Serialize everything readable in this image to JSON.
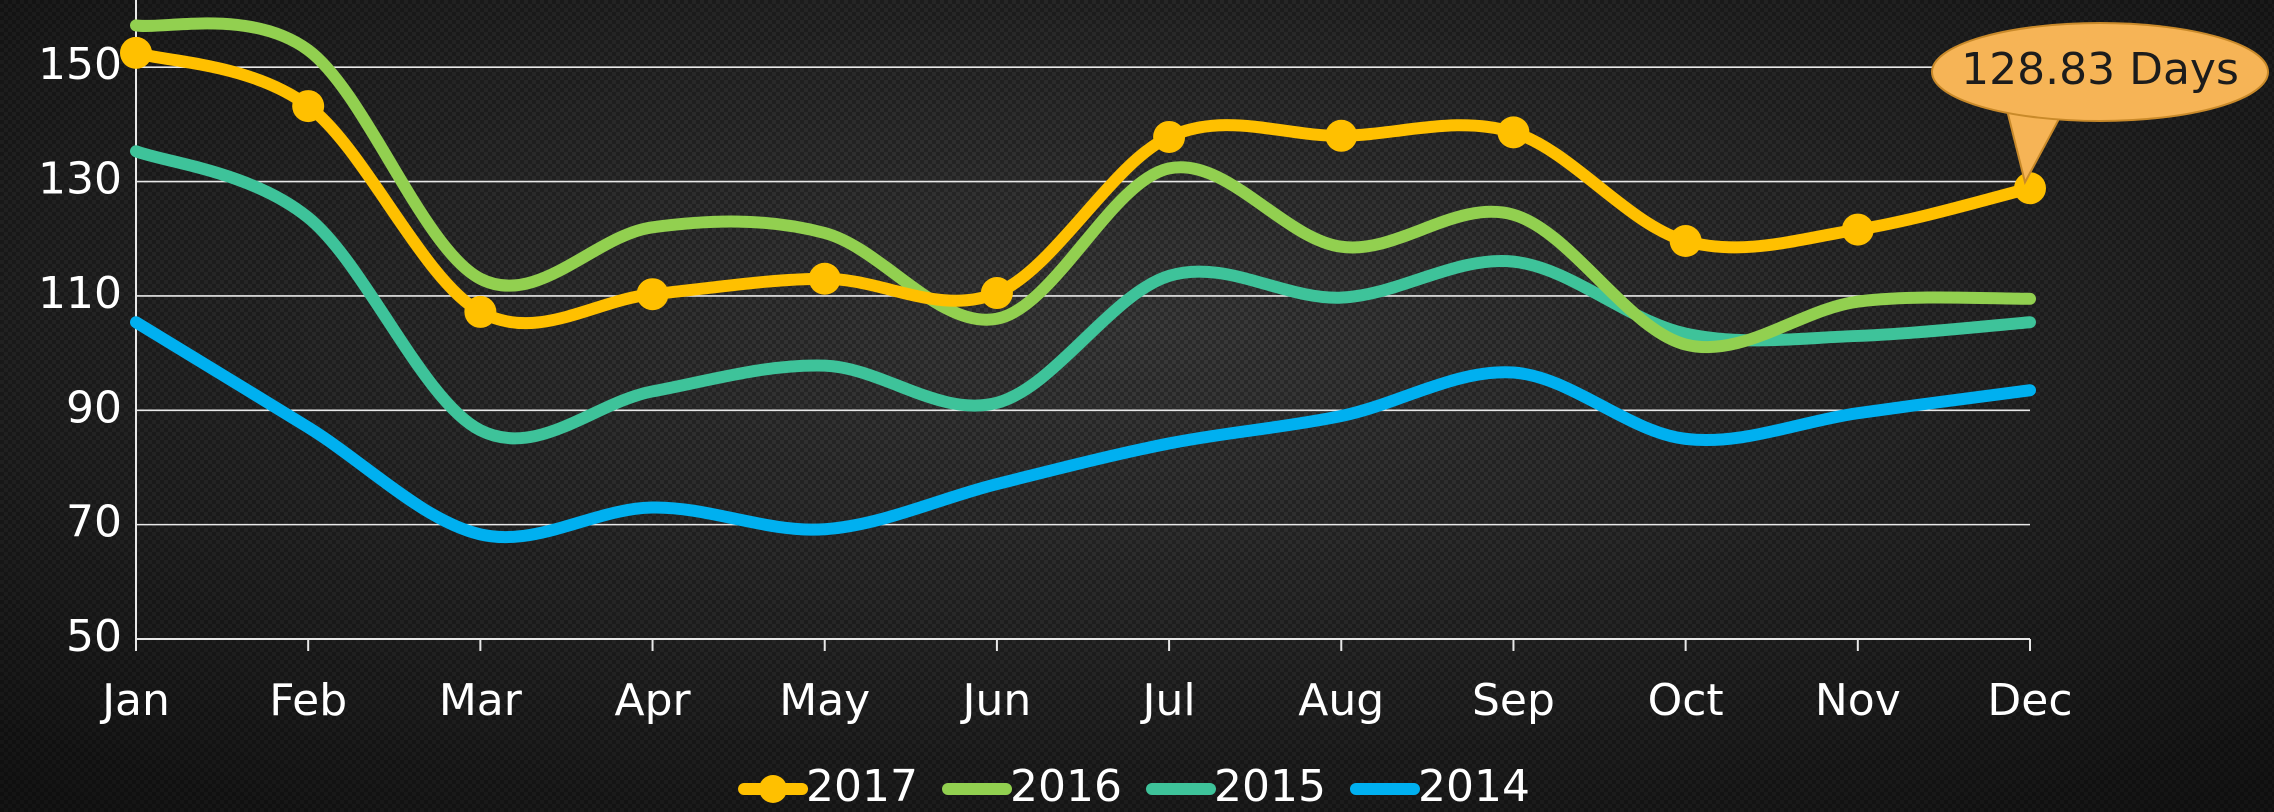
{
  "chart_data": {
    "type": "line",
    "categories": [
      "Jan",
      "Feb",
      "Mar",
      "Apr",
      "May",
      "Jun",
      "Jul",
      "Aug",
      "Sep",
      "Oct",
      "Nov",
      "Dec"
    ],
    "series": [
      {
        "name": "2017",
        "color": "#FFC000",
        "markers": true,
        "values": [
          152.5,
          143.2,
          107.2,
          110.3,
          113,
          110.5,
          137.8,
          138,
          138.6,
          119.6,
          121.6,
          128.83
        ]
      },
      {
        "name": "2016",
        "color": "#92D050",
        "markers": false,
        "values": [
          157.3,
          153,
          113,
          122,
          121,
          106,
          132.3,
          118.6,
          124.2,
          101.5,
          109,
          109.5
        ]
      },
      {
        "name": "2015",
        "color": "#3EC39A",
        "markers": false,
        "values": [
          135.3,
          123.7,
          86.5,
          93.3,
          97.8,
          91.3,
          113.5,
          109.7,
          116,
          103.4,
          103,
          105.4
        ]
      },
      {
        "name": "2014",
        "color": "#00B0F0",
        "markers": false,
        "values": [
          105.4,
          87,
          68.3,
          73,
          69.2,
          77.1,
          84.2,
          89,
          96.6,
          85,
          89.5,
          93.5
        ]
      }
    ],
    "annotation": {
      "text": "128.83 Days"
    },
    "ylim": [
      50,
      160
    ],
    "yticks": [
      50,
      70,
      90,
      110,
      130,
      150
    ],
    "grid": true,
    "legend": "bottom"
  }
}
